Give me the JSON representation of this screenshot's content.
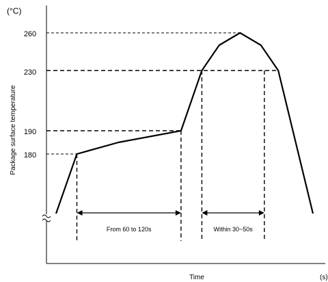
{
  "chart_data": {
    "type": "line",
    "ylabel": "Package surface temperature",
    "y_unit": "(°C)",
    "xlabel": "Time",
    "x_unit": "(s)",
    "y_ticks": [
      "260",
      "230",
      "190",
      "180"
    ],
    "series": [
      {
        "x": [
          0,
          30,
          90,
          180,
          210,
          235,
          265,
          295,
          320,
          370
        ],
        "y": [
          150,
          180,
          185,
          190,
          230,
          250,
          260,
          250,
          230,
          150
        ]
      }
    ],
    "guide_levels": [
      180,
      190,
      230,
      260
    ],
    "annotations": [
      {
        "text": "From 60 to 120s",
        "from_x": 30,
        "to_x": 180
      },
      {
        "text": "Within 30~50s",
        "from_x": 210,
        "to_x": 300
      }
    ],
    "axis_break": true,
    "xlim": [
      -10,
      380
    ],
    "ylim": [
      140,
      270
    ]
  }
}
